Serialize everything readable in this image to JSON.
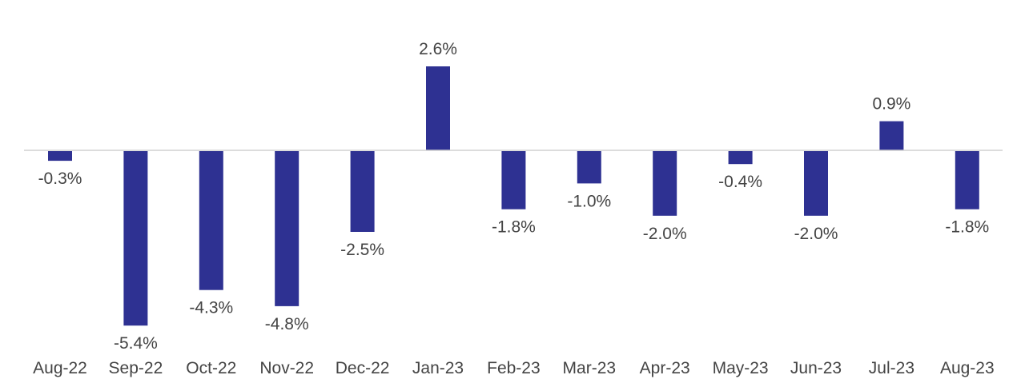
{
  "chart_data": {
    "type": "bar",
    "title": "",
    "xlabel": "",
    "ylabel": "",
    "categories": [
      "Aug-22",
      "Sep-22",
      "Oct-22",
      "Nov-22",
      "Dec-22",
      "Jan-23",
      "Feb-23",
      "Mar-23",
      "Apr-23",
      "May-23",
      "Jun-23",
      "Jul-23",
      "Aug-23"
    ],
    "values": [
      -0.3,
      -5.4,
      -4.3,
      -4.8,
      -2.5,
      2.6,
      -1.8,
      -1.0,
      -2.0,
      -0.4,
      -2.0,
      0.9,
      -1.8
    ],
    "value_labels": [
      "-0.3%",
      "-5.4%",
      "-4.3%",
      "-4.8%",
      "-2.5%",
      "2.6%",
      "-1.8%",
      "-1.0%",
      "-2.0%",
      "-0.4%",
      "-2.0%",
      "0.9%",
      "-1.8%"
    ],
    "ylim": [
      -5.4,
      2.6
    ],
    "grid": false,
    "legend": "none",
    "colors": {
      "bar": "#2e3192",
      "baseline": "#d0d0d0",
      "text": "#444444"
    }
  }
}
